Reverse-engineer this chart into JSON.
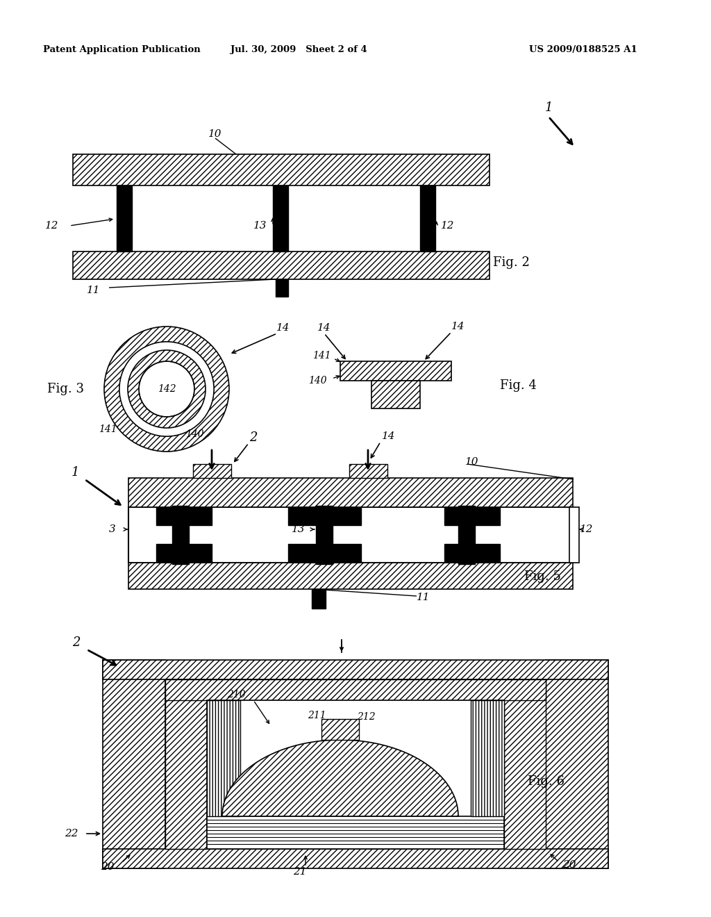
{
  "bg_color": "#ffffff",
  "header_left": "Patent Application Publication",
  "header_mid": "Jul. 30, 2009   Sheet 2 of 4",
  "header_right": "US 2009/0188525 A1"
}
